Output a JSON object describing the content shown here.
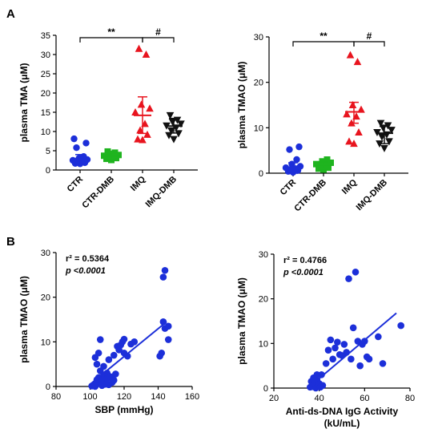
{
  "panel_labels": [
    "A",
    "B"
  ],
  "chart_data": [
    {
      "type": "scatter",
      "subtype": "dot-plot-with-error-bars",
      "ylabel": "plasma TMA (μM)",
      "ylim": [
        0,
        35
      ],
      "yticks": [
        0,
        5,
        10,
        15,
        20,
        25,
        30,
        35
      ],
      "categories": [
        "CTR",
        "CTR-DMB",
        "IMQ",
        "IMQ-DMB"
      ],
      "series": [
        {
          "category": "CTR",
          "color": "#1c2fd9",
          "marker": "circle",
          "mean": 2.9,
          "sd_low": 1.7,
          "sd_high": 4.0,
          "values": [
            1.6,
            1.7,
            1.9,
            2.1,
            2.2,
            2.5,
            2.7,
            3.0,
            3.5,
            5.8,
            7.0,
            8.1
          ]
        },
        {
          "category": "CTR-DMB",
          "color": "#1fb41f",
          "marker": "square",
          "mean": 3.6,
          "sd_low": 2.6,
          "sd_high": 4.5,
          "values": [
            2.6,
            2.9,
            3.1,
            3.3,
            3.5,
            3.7,
            3.9,
            4.2,
            4.5,
            4.8
          ]
        },
        {
          "category": "IMQ",
          "color": "#e8141e",
          "marker": "triangle-up",
          "mean": 14.2,
          "sd_low": 9.5,
          "sd_high": 19.0,
          "values": [
            7.8,
            8.0,
            9.2,
            10.3,
            12.0,
            15.0,
            16.0,
            17.0,
            30.0,
            31.5
          ]
        },
        {
          "category": "IMQ-DMB",
          "color": "#111111",
          "marker": "triangle-down",
          "mean": 11.4,
          "sd_low": 9.6,
          "sd_high": 13.4,
          "values": [
            8.0,
            9.0,
            9.5,
            10.2,
            11.0,
            11.5,
            12.0,
            12.5,
            13.0,
            14.2
          ]
        }
      ],
      "significance": [
        {
          "from": "CTR",
          "to": "IMQ",
          "label": "**"
        },
        {
          "from": "IMQ",
          "to": "IMQ-DMB",
          "label": "#"
        }
      ]
    },
    {
      "type": "scatter",
      "subtype": "dot-plot-with-error-bars",
      "ylabel": "plasma TMAO (μM)",
      "ylim": [
        0,
        30
      ],
      "yticks": [
        0,
        10,
        20,
        30
      ],
      "categories": [
        "CTR",
        "CTR-DMB",
        "IMQ",
        "IMQ-DMB"
      ],
      "series": [
        {
          "category": "CTR",
          "color": "#1c2fd9",
          "marker": "circle",
          "mean": 1.3,
          "sd_low": 0.0,
          "sd_high": 2.3,
          "values": [
            0.2,
            0.4,
            0.6,
            0.8,
            1.0,
            1.2,
            1.5,
            2.0,
            3.0,
            5.2,
            5.8
          ]
        },
        {
          "category": "CTR-DMB",
          "color": "#1fb41f",
          "marker": "square",
          "mean": 1.8,
          "sd_low": 1.0,
          "sd_high": 2.5,
          "values": [
            0.8,
            1.0,
            1.2,
            1.5,
            1.8,
            2.0,
            2.3,
            2.6,
            3.0
          ]
        },
        {
          "category": "IMQ",
          "color": "#e8141e",
          "marker": "triangle-up",
          "mean": 13.5,
          "sd_low": 11.0,
          "sd_high": 15.6,
          "values": [
            6.5,
            7.0,
            9.0,
            11.0,
            12.5,
            13.0,
            14.0,
            15.0,
            24.5,
            26.0
          ]
        },
        {
          "category": "IMQ-DMB",
          "color": "#111111",
          "marker": "triangle-down",
          "mean": 8.8,
          "sd_low": 6.5,
          "sd_high": 10.3,
          "values": [
            5.5,
            6.5,
            7.0,
            8.0,
            8.5,
            9.0,
            9.5,
            10.0,
            10.5,
            11.0
          ]
        }
      ],
      "significance": [
        {
          "from": "CTR",
          "to": "IMQ",
          "label": "**"
        },
        {
          "from": "IMQ",
          "to": "IMQ-DMB",
          "label": "#"
        }
      ]
    },
    {
      "type": "scatter",
      "xlabel": "SBP (mmHg)",
      "ylabel": "plasma TMAO (μM)",
      "xlim": [
        80,
        160
      ],
      "xticks": [
        80,
        100,
        120,
        140,
        160
      ],
      "ylim": [
        0,
        30
      ],
      "yticks": [
        0,
        10,
        20,
        30
      ],
      "color": "#1c2fd9",
      "stats": {
        "r2": "r² = 0.5364",
        "p": "p <0.0001"
      },
      "fit": {
        "x": [
          100,
          145
        ],
        "y": [
          0.5,
          14.5
        ]
      },
      "points": [
        [
          101,
          0.1
        ],
        [
          102,
          0.3
        ],
        [
          103,
          0.0
        ],
        [
          104,
          0.6
        ],
        [
          104,
          1.5
        ],
        [
          105,
          2.0
        ],
        [
          106,
          0.8
        ],
        [
          106,
          3.5
        ],
        [
          107,
          0.2
        ],
        [
          107,
          1.2
        ],
        [
          108,
          4.5
        ],
        [
          108,
          2.6
        ],
        [
          109,
          0.5
        ],
        [
          110,
          1.8
        ],
        [
          110,
          3.0
        ],
        [
          111,
          0.4
        ],
        [
          111,
          6.0
        ],
        [
          112,
          2.2
        ],
        [
          103,
          6.5
        ],
        [
          104,
          5.0
        ],
        [
          105,
          7.5
        ],
        [
          106,
          10.5
        ],
        [
          113,
          0.9
        ],
        [
          114,
          1.4
        ],
        [
          115,
          2.8
        ],
        [
          116,
          9.0
        ],
        [
          117,
          8.2
        ],
        [
          118,
          9.3
        ],
        [
          119,
          10.0
        ],
        [
          120,
          10.6
        ],
        [
          114,
          7.0
        ],
        [
          120,
          7.5
        ],
        [
          122,
          6.8
        ],
        [
          124,
          9.5
        ],
        [
          126,
          10.0
        ],
        [
          141,
          6.8
        ],
        [
          142,
          7.5
        ],
        [
          143,
          14.5
        ],
        [
          144,
          13.0
        ],
        [
          143,
          24.5
        ],
        [
          144,
          26.0
        ],
        [
          146,
          10.5
        ],
        [
          146,
          13.5
        ]
      ]
    },
    {
      "type": "scatter",
      "xlabel": "Anti-ds-DNA IgG Activity",
      "xlabel_line2": "(kU/mL)",
      "ylabel": "plasma TMAO (μM)",
      "xlim": [
        20,
        80
      ],
      "xticks": [
        20,
        40,
        60,
        80
      ],
      "ylim": [
        0,
        30
      ],
      "yticks": [
        0,
        10,
        20,
        30
      ],
      "color": "#1c2fd9",
      "stats": {
        "r2": "r² = 0.4766",
        "p": "p <0.0001"
      },
      "fit": {
        "x": [
          35,
          74
        ],
        "y": [
          0.0,
          16.8
        ]
      },
      "points": [
        [
          36,
          0.2
        ],
        [
          36.5,
          1.5
        ],
        [
          37,
          0.3
        ],
        [
          37.5,
          2.3
        ],
        [
          38,
          0.8
        ],
        [
          38.5,
          0.0
        ],
        [
          39,
          1.8
        ],
        [
          39.5,
          0.5
        ],
        [
          40,
          1.0
        ],
        [
          40.5,
          0.2
        ],
        [
          41,
          3.0
        ],
        [
          41.5,
          0.6
        ],
        [
          38,
          2.0
        ],
        [
          39,
          3.0
        ],
        [
          43,
          5.5
        ],
        [
          44,
          8.5
        ],
        [
          45,
          10.8
        ],
        [
          46,
          6.5
        ],
        [
          47,
          9.0
        ],
        [
          48,
          10.3
        ],
        [
          49,
          7.5
        ],
        [
          50,
          7.3
        ],
        [
          51,
          9.8
        ],
        [
          52,
          8.0
        ],
        [
          53,
          24.5
        ],
        [
          54,
          6.5
        ],
        [
          55,
          13.5
        ],
        [
          56,
          26.0
        ],
        [
          57,
          10.5
        ],
        [
          58,
          5.0
        ],
        [
          59,
          9.8
        ],
        [
          60,
          10.5
        ],
        [
          61,
          7.0
        ],
        [
          62,
          6.5
        ],
        [
          66,
          11.5
        ],
        [
          68,
          5.5
        ],
        [
          76,
          14.0
        ]
      ]
    }
  ]
}
